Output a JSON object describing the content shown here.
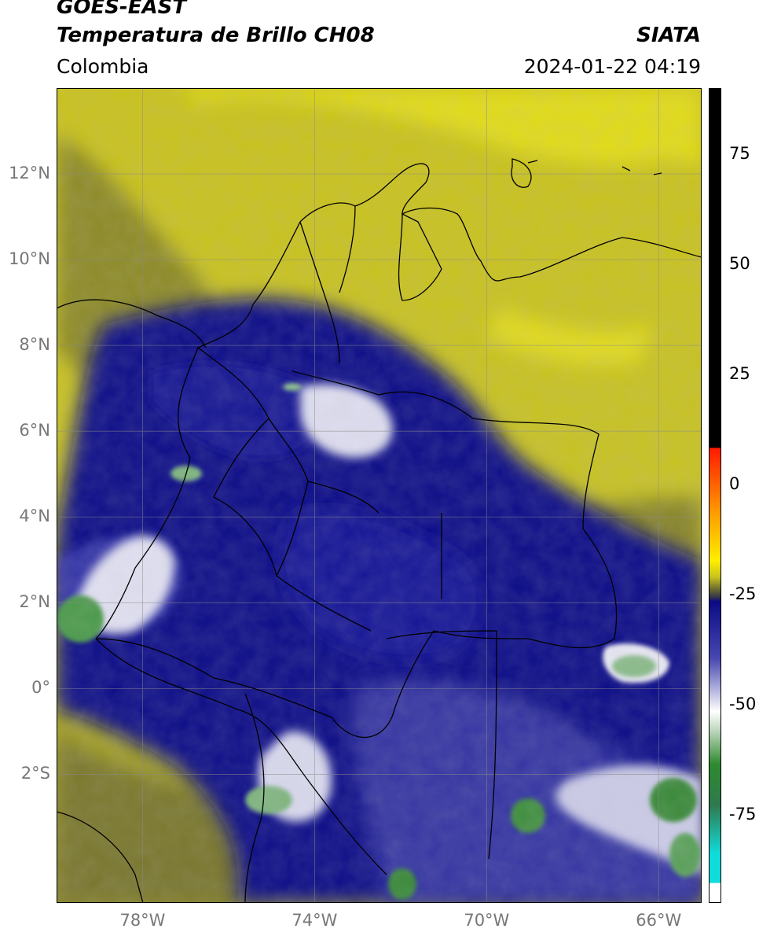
{
  "header": {
    "satellite": "GOES-EAST",
    "product": "Temperatura de Brillo CH08",
    "region": "Colombia",
    "agency": "SIATA",
    "timestamp": "2024-01-22 04:19"
  },
  "map": {
    "lon_range": [
      -80,
      -65
    ],
    "lat_range": [
      -5,
      14
    ],
    "lat_ticks": [
      {
        "value": 12,
        "label": "12°N"
      },
      {
        "value": 10,
        "label": "10°N"
      },
      {
        "value": 8,
        "label": "8°N"
      },
      {
        "value": 6,
        "label": "6°N"
      },
      {
        "value": 4,
        "label": "4°N"
      },
      {
        "value": 2,
        "label": "2°N"
      },
      {
        "value": 0,
        "label": "0°"
      },
      {
        "value": -2,
        "label": "2°S"
      }
    ],
    "lon_ticks": [
      {
        "value": -78,
        "label": "78°W"
      },
      {
        "value": -74,
        "label": "74°W"
      },
      {
        "value": -70,
        "label": "70°W"
      },
      {
        "value": -66,
        "label": "66°W"
      }
    ],
    "grid": true
  },
  "colorbar": {
    "range": [
      -95,
      90
    ],
    "ticks": [
      {
        "value": 75,
        "label": "75"
      },
      {
        "value": 50,
        "label": "50"
      },
      {
        "value": 25,
        "label": "25"
      },
      {
        "value": 0,
        "label": "0"
      },
      {
        "value": -25,
        "label": "-25"
      },
      {
        "value": -50,
        "label": "-50"
      },
      {
        "value": -75,
        "label": "-75"
      }
    ],
    "colors": {
      "black": "#000000",
      "red": "#ff1a00",
      "orange": "#ff9900",
      "yellow": "#ffee00",
      "olive": "#6b6b2e",
      "navy": "#0a0a86",
      "lavender": "#b8b8e0",
      "white": "#ffffff",
      "green": "#2e8a2e",
      "cyan": "#11dcdc"
    }
  }
}
